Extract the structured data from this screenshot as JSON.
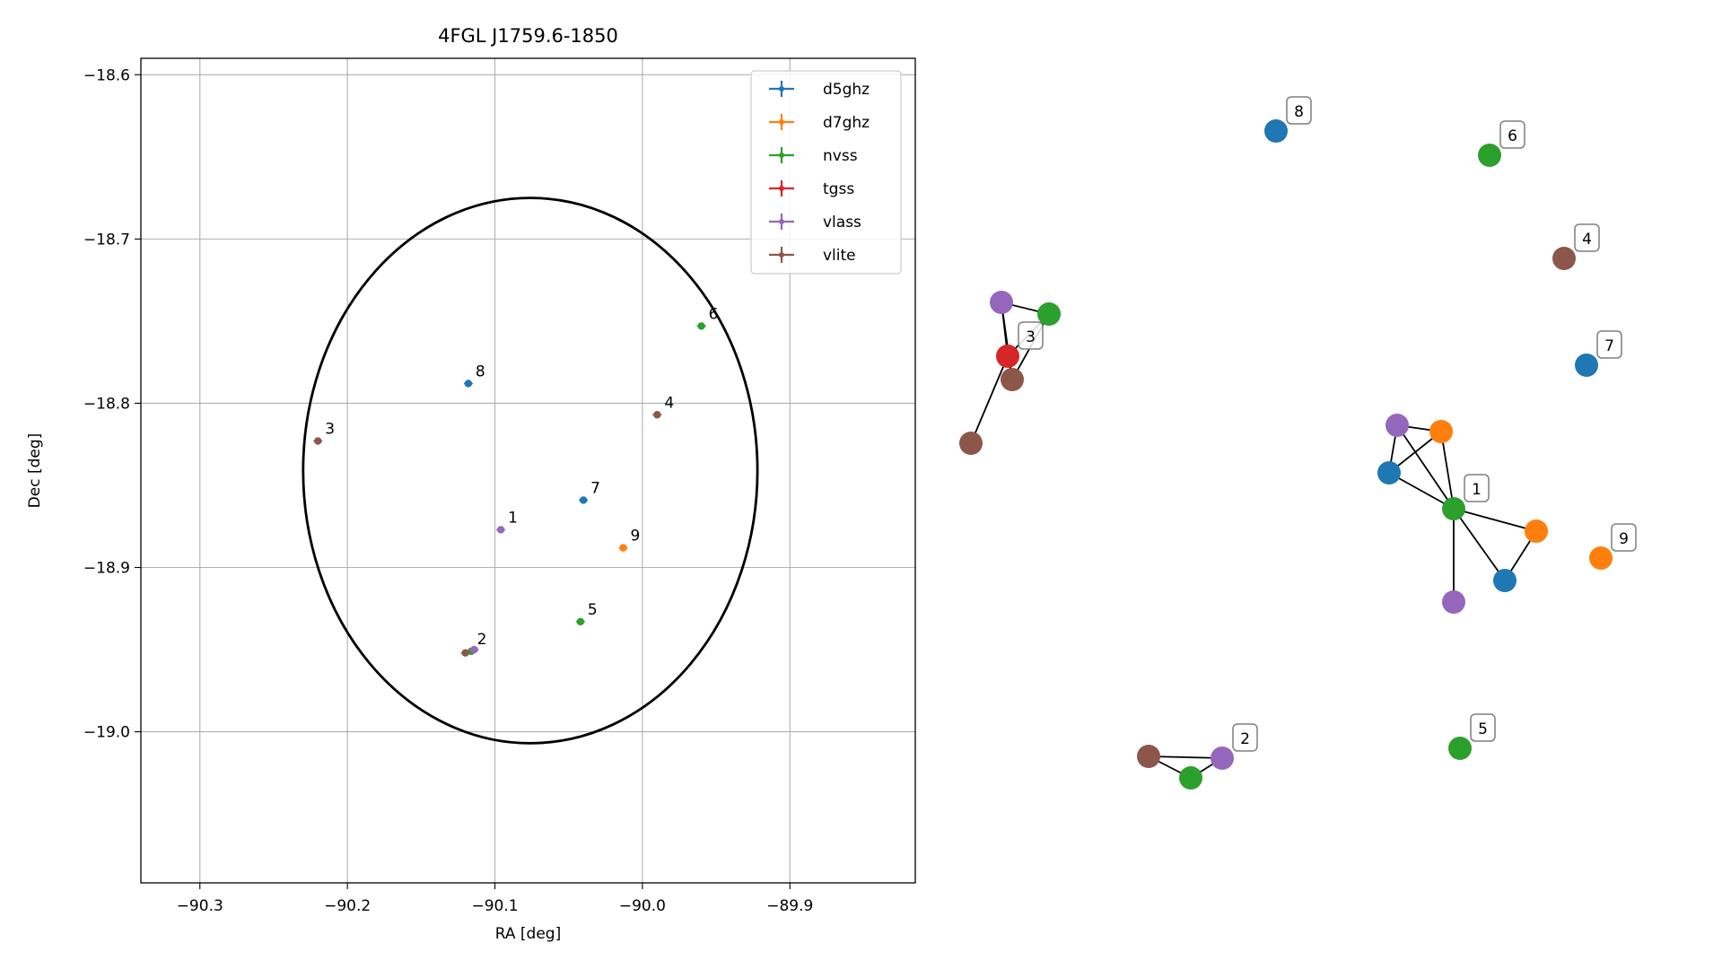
{
  "chart_data": [
    {
      "type": "scatter",
      "title": "4FGL J1759.6-1850",
      "xlabel": "RA [deg]",
      "ylabel": "Dec [deg]",
      "xlim": [
        -90.34,
        -89.815
      ],
      "ylim": [
        -19.092,
        -18.59
      ],
      "xticks": [
        -90.3,
        -90.2,
        -90.1,
        -90.0,
        -89.9
      ],
      "xtick_labels": [
        "−90.3",
        "−90.2",
        "−90.1",
        "−90.0",
        "−89.9"
      ],
      "yticks": [
        -18.6,
        -18.7,
        -18.8,
        -18.9,
        -19.0
      ],
      "ytick_labels": [
        "−18.6",
        "−18.7",
        "−18.8",
        "−18.9",
        "−19.0"
      ],
      "grid": true,
      "legend_position": "top-right",
      "ellipse": {
        "center": [
          -90.076,
          -18.841
        ],
        "semi_axis_ra": 0.154,
        "semi_axis_dec": 0.166
      },
      "series": [
        {
          "name": "d5ghz",
          "color": "#1f77b4",
          "points": [
            [
              -90.118,
              -18.788
            ],
            [
              -90.04,
              -18.859
            ]
          ]
        },
        {
          "name": "d7ghz",
          "color": "#ff7f0e",
          "points": [
            [
              -90.013,
              -18.888
            ]
          ]
        },
        {
          "name": "nvss",
          "color": "#2ca02c",
          "points": [
            [
              -90.042,
              -18.933
            ],
            [
              -89.96,
              -18.753
            ],
            [
              -90.116,
              -18.951
            ]
          ]
        },
        {
          "name": "tgss",
          "color": "#d62728",
          "points": []
        },
        {
          "name": "vlass",
          "color": "#9467bd",
          "points": [
            [
              -90.096,
              -18.877
            ],
            [
              -90.114,
              -18.95
            ]
          ]
        },
        {
          "name": "vlite",
          "color": "#8c564b",
          "points": [
            [
              -90.22,
              -18.823
            ],
            [
              -89.99,
              -18.807
            ],
            [
              -90.12,
              -18.952
            ]
          ]
        }
      ],
      "point_labels": [
        {
          "text": "1",
          "x": -90.096,
          "y": -18.877
        },
        {
          "text": "2",
          "x": -90.117,
          "y": -18.951
        },
        {
          "text": "3",
          "x": -90.22,
          "y": -18.823
        },
        {
          "text": "4",
          "x": -89.99,
          "y": -18.807
        },
        {
          "text": "5",
          "x": -90.042,
          "y": -18.933
        },
        {
          "text": "6",
          "x": -89.96,
          "y": -18.753
        },
        {
          "text": "7",
          "x": -90.04,
          "y": -18.859
        },
        {
          "text": "8",
          "x": -90.118,
          "y": -18.788
        },
        {
          "text": "9",
          "x": -90.013,
          "y": -18.888
        }
      ]
    },
    {
      "type": "network",
      "nodes": [
        {
          "id": "g1_green",
          "color": "#2ca02c",
          "label": "1"
        },
        {
          "id": "g1_purpleA",
          "color": "#9467bd"
        },
        {
          "id": "g1_orangeA",
          "color": "#ff7f0e"
        },
        {
          "id": "g1_blueA",
          "color": "#1f77b4"
        },
        {
          "id": "g1_orangeB",
          "color": "#ff7f0e"
        },
        {
          "id": "g1_blueB",
          "color": "#1f77b4"
        },
        {
          "id": "g1_purpleB",
          "color": "#9467bd"
        },
        {
          "id": "g2_brown",
          "color": "#8c564b"
        },
        {
          "id": "g2_green",
          "color": "#2ca02c"
        },
        {
          "id": "g2_purple",
          "color": "#9467bd",
          "label": "2"
        },
        {
          "id": "g3_purple",
          "color": "#9467bd"
        },
        {
          "id": "g3_green",
          "color": "#2ca02c"
        },
        {
          "id": "g3_red",
          "color": "#d62728",
          "label": "3"
        },
        {
          "id": "g3_brownA",
          "color": "#8c564b"
        },
        {
          "id": "g3_brownB",
          "color": "#8c564b"
        },
        {
          "id": "n4",
          "color": "#8c564b",
          "label": "4"
        },
        {
          "id": "n5",
          "color": "#2ca02c",
          "label": "5"
        },
        {
          "id": "n6",
          "color": "#2ca02c",
          "label": "6"
        },
        {
          "id": "n7",
          "color": "#1f77b4",
          "label": "7"
        },
        {
          "id": "n8",
          "color": "#1f77b4",
          "label": "8"
        },
        {
          "id": "n9",
          "color": "#ff7f0e",
          "label": "9"
        }
      ],
      "edges": [
        [
          "g1_purpleA",
          "g1_orangeA"
        ],
        [
          "g1_purpleA",
          "g1_blueA"
        ],
        [
          "g1_purpleA",
          "g1_green"
        ],
        [
          "g1_blueA",
          "g1_orangeA"
        ],
        [
          "g1_blueA",
          "g1_green"
        ],
        [
          "g1_orangeA",
          "g1_green"
        ],
        [
          "g1_green",
          "g1_orangeB"
        ],
        [
          "g1_green",
          "g1_blueB"
        ],
        [
          "g1_green",
          "g1_purpleB"
        ],
        [
          "g1_orangeB",
          "g1_blueB"
        ],
        [
          "g2_brown",
          "g2_green"
        ],
        [
          "g2_brown",
          "g2_purple"
        ],
        [
          "g2_green",
          "g2_purple"
        ],
        [
          "g3_purple",
          "g3_green"
        ],
        [
          "g3_purple",
          "g3_red"
        ],
        [
          "g3_green",
          "g3_red"
        ],
        [
          "g3_purple",
          "g3_brownA"
        ],
        [
          "g3_green",
          "g3_brownA"
        ],
        [
          "g3_red",
          "g3_brownA"
        ],
        [
          "g3_red",
          "g3_brownB"
        ]
      ]
    }
  ]
}
